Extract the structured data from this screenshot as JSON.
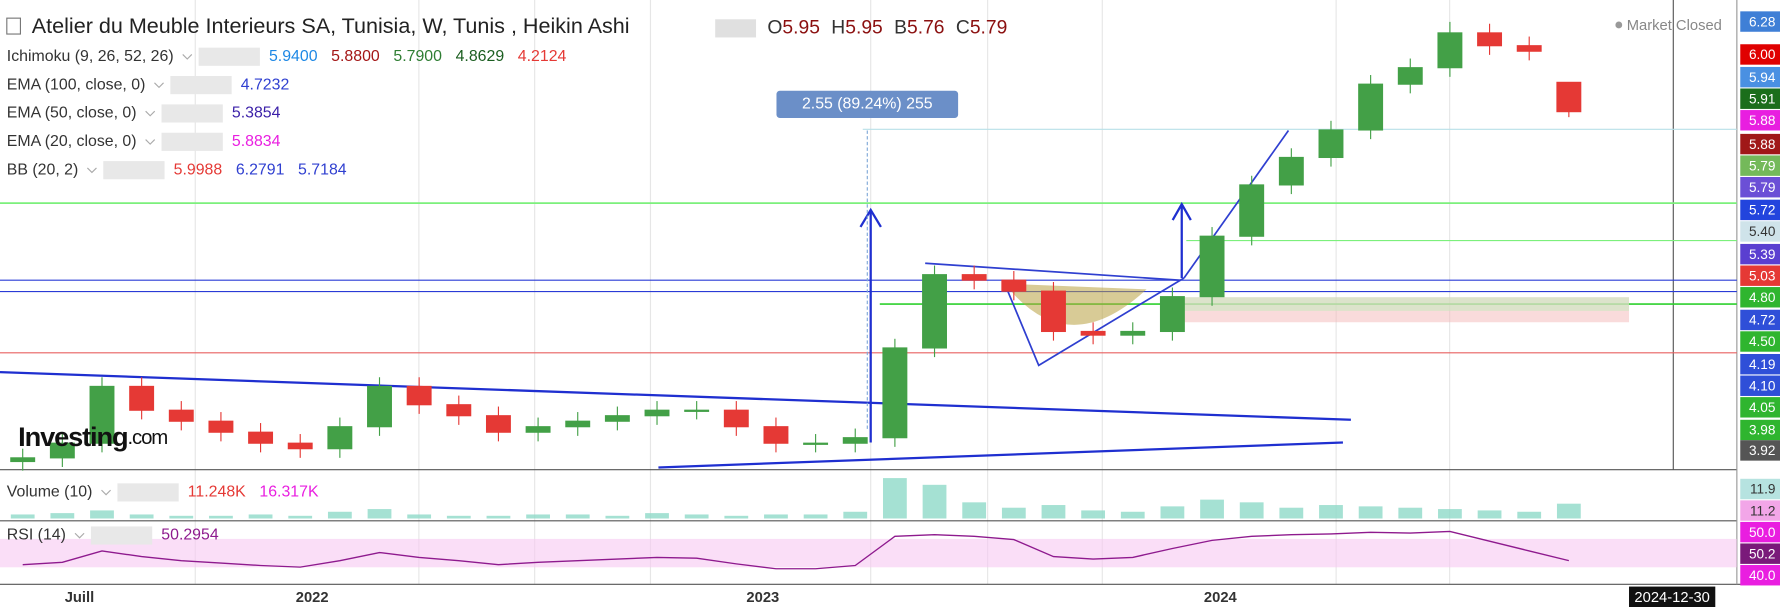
{
  "header": {
    "title": "Atelier du Meuble Interieurs SA, Tunisia, W, Tunis , Heikin Ashi",
    "ohlc": [
      {
        "label": "O",
        "value": "5.95"
      },
      {
        "label": "H",
        "value": "5.95"
      },
      {
        "label": "B",
        "value": "5.76"
      },
      {
        "label": "C",
        "value": "5.79"
      }
    ],
    "status": "Market Closed"
  },
  "indicators": [
    {
      "name": "Ichimoku (9, 26, 52, 26)",
      "values": [
        {
          "text": "5.9400",
          "color": "#1e88e5"
        },
        {
          "text": "5.8800",
          "color": "#a31515"
        },
        {
          "text": "5.7900",
          "color": "#2e7d32"
        },
        {
          "text": "4.8629",
          "color": "#1b5e20"
        },
        {
          "text": "4.2124",
          "color": "#e53935"
        }
      ]
    },
    {
      "name": "EMA (100, close, 0)",
      "values": [
        {
          "text": "4.7232",
          "color": "#2f3fd0"
        }
      ]
    },
    {
      "name": "EMA (50, close, 0)",
      "values": [
        {
          "text": "5.3854",
          "color": "#3a1fa8"
        }
      ]
    },
    {
      "name": "EMA (20, close, 0)",
      "values": [
        {
          "text": "5.8834",
          "color": "#e91ee0"
        }
      ]
    },
    {
      "name": "BB (20, 2)",
      "values": [
        {
          "text": "5.9988",
          "color": "#e53935"
        },
        {
          "text": "6.2791",
          "color": "#2f3fd0"
        },
        {
          "text": "5.7184",
          "color": "#2f3fd0"
        }
      ]
    }
  ],
  "measure_label": "2.55 (89.24%) 255",
  "price_tags": [
    {
      "text": "6.28",
      "color": "#3f7fd6"
    },
    {
      "text": "6.00",
      "color": "#e00000"
    },
    {
      "text": "5.94",
      "color": "#4a90e2"
    },
    {
      "text": "5.91",
      "color": "#1b6e1b"
    },
    {
      "text": "5.88",
      "color": "#e81ee0"
    },
    {
      "text": "5.88",
      "color": "#a01818"
    },
    {
      "text": "5.79",
      "color": "#74b95a"
    },
    {
      "text": "5.79",
      "color": "#6b4fd6"
    },
    {
      "text": "5.72",
      "color": "#2244dd"
    },
    {
      "text": "5.40",
      "color": "#cfe3ea"
    },
    {
      "text": "5.39",
      "color": "#5a3fd0"
    },
    {
      "text": "5.03",
      "color": "#e53935"
    },
    {
      "text": "4.80",
      "color": "#2fb52f"
    },
    {
      "text": "4.72",
      "color": "#2f4fd8"
    },
    {
      "text": "4.50",
      "color": "#2fb52f"
    },
    {
      "text": "4.19",
      "color": "#2f4fd8"
    },
    {
      "text": "4.10",
      "color": "#2f4fd8"
    },
    {
      "text": "4.05",
      "color": "#2fb52f"
    },
    {
      "text": "3.98",
      "color": "#2fb52f"
    },
    {
      "text": "3.92",
      "color": "#555555"
    }
  ],
  "volume_pane": {
    "name": "Volume (10)",
    "values": [
      {
        "text": "11.248K",
        "color": "#e53935"
      },
      {
        "text": "16.317K",
        "color": "#e91ee0"
      }
    ],
    "tags": [
      {
        "text": "11.9",
        "color": "#b6e3e0"
      },
      {
        "text": "11.2",
        "color": "#f2a6e8"
      }
    ]
  },
  "rsi_pane": {
    "name": "RSI (14)",
    "values": [
      {
        "text": "50.2954",
        "color": "#8e1a8e"
      }
    ],
    "tags": [
      {
        "text": "50.0",
        "color": "#e91ee0"
      },
      {
        "text": "50.2",
        "color": "#7a1a7a"
      },
      {
        "text": "40.0",
        "color": "#e91ee0"
      }
    ]
  },
  "time_labels": [
    "Juill",
    "2022",
    "2023",
    "2024"
  ],
  "cursor_date": "2024-12-30",
  "logo": {
    "brand": "Investing",
    "suffix": ".com"
  },
  "chart_data": {
    "type": "candlestick",
    "up_color": "#43a047",
    "down_color": "#e53935",
    "ylim": [
      3.86,
      6.35
    ],
    "open": [
      3.88,
      3.9,
      3.98,
      4.29,
      4.16,
      4.1,
      4.04,
      3.98,
      3.95,
      4.07,
      4.29,
      4.19,
      4.13,
      4.04,
      4.07,
      4.1,
      4.13,
      4.16,
      4.16,
      4.07,
      3.98,
      3.98,
      4.01,
      4.5,
      4.9,
      4.87,
      4.81,
      4.59,
      4.57,
      4.59,
      4.78,
      5.11,
      5.39,
      5.54,
      5.69,
      5.94,
      6.03,
      6.22,
      6.15,
      5.95
    ],
    "high": [
      3.95,
      4.03,
      4.34,
      4.34,
      4.21,
      4.15,
      4.09,
      4.03,
      4.12,
      4.34,
      4.34,
      4.24,
      4.18,
      4.12,
      4.15,
      4.18,
      4.21,
      4.21,
      4.21,
      4.12,
      4.03,
      4.06,
      4.55,
      4.95,
      4.95,
      4.92,
      4.86,
      4.64,
      4.64,
      4.83,
      5.16,
      5.44,
      5.59,
      5.74,
      5.99,
      6.08,
      6.28,
      6.27,
      6.2,
      5.95
    ],
    "low": [
      3.83,
      3.85,
      3.93,
      4.11,
      4.05,
      3.99,
      3.93,
      3.9,
      3.9,
      4.02,
      4.14,
      4.08,
      3.99,
      3.99,
      4.02,
      4.05,
      4.08,
      4.11,
      4.02,
      3.93,
      3.93,
      3.93,
      3.96,
      4.45,
      4.82,
      4.76,
      4.54,
      4.52,
      4.52,
      4.54,
      4.73,
      5.06,
      5.34,
      5.49,
      5.64,
      5.89,
      5.98,
      6.1,
      6.07,
      5.76
    ],
    "close": [
      3.9,
      3.98,
      4.29,
      4.16,
      4.1,
      4.04,
      3.98,
      3.95,
      4.07,
      4.29,
      4.19,
      4.13,
      4.04,
      4.07,
      4.1,
      4.13,
      4.16,
      4.16,
      4.07,
      3.98,
      3.98,
      4.01,
      4.5,
      4.9,
      4.87,
      4.81,
      4.59,
      4.57,
      4.59,
      4.78,
      5.11,
      5.39,
      5.54,
      5.69,
      5.94,
      6.03,
      6.22,
      6.15,
      6.12,
      5.79
    ],
    "volume": {
      "ylim": [
        0,
        32
      ],
      "color": "#8fd9c8",
      "values": [
        3,
        4,
        6,
        3,
        2,
        2,
        3,
        2,
        5,
        7,
        3,
        2,
        2,
        3,
        3,
        2,
        4,
        3,
        2,
        3,
        3,
        5,
        30,
        25,
        12,
        8,
        10,
        6,
        5,
        9,
        14,
        12,
        8,
        10,
        9,
        8,
        7,
        6,
        5,
        11
      ]
    },
    "rsi": {
      "ylim": [
        25,
        95
      ],
      "color": "#8e1a8e",
      "values": [
        45,
        48,
        62,
        55,
        50,
        47,
        44,
        42,
        50,
        60,
        54,
        50,
        45,
        48,
        50,
        52,
        54,
        53,
        46,
        40,
        40,
        44,
        80,
        82,
        80,
        76,
        55,
        52,
        54,
        65,
        75,
        80,
        82,
        83,
        85,
        84,
        86,
        74,
        62,
        50
      ]
    }
  }
}
